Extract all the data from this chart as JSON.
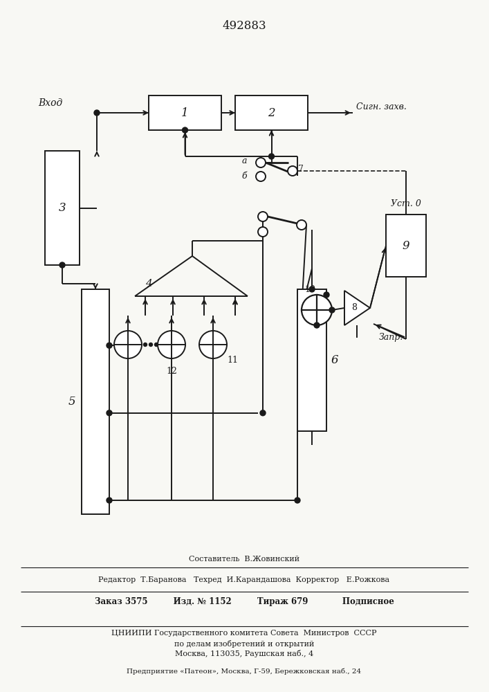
{
  "title": "492883",
  "bg_color": "#f8f8f4",
  "line_color": "#1a1a1a",
  "footer": {
    "l1": "Составитель  В.Жовинский",
    "l2": "Редактор  Т.Баранова   Техред  И.Карандашова  Корректор   Е.Рожкова",
    "l3": "Заказ 3575         Изд. № 1152         Тираж 679            Подписное",
    "l4": "ЦНИИПИ Государственного комитета Совета  Министров  СССР",
    "l5": "по делам изобретений и открытий",
    "l6": "Москва, 113035, Раушская наб., 4",
    "l7": "Предприятие «Патеон», Москва, Г-59, Бережковская наб., 24"
  }
}
